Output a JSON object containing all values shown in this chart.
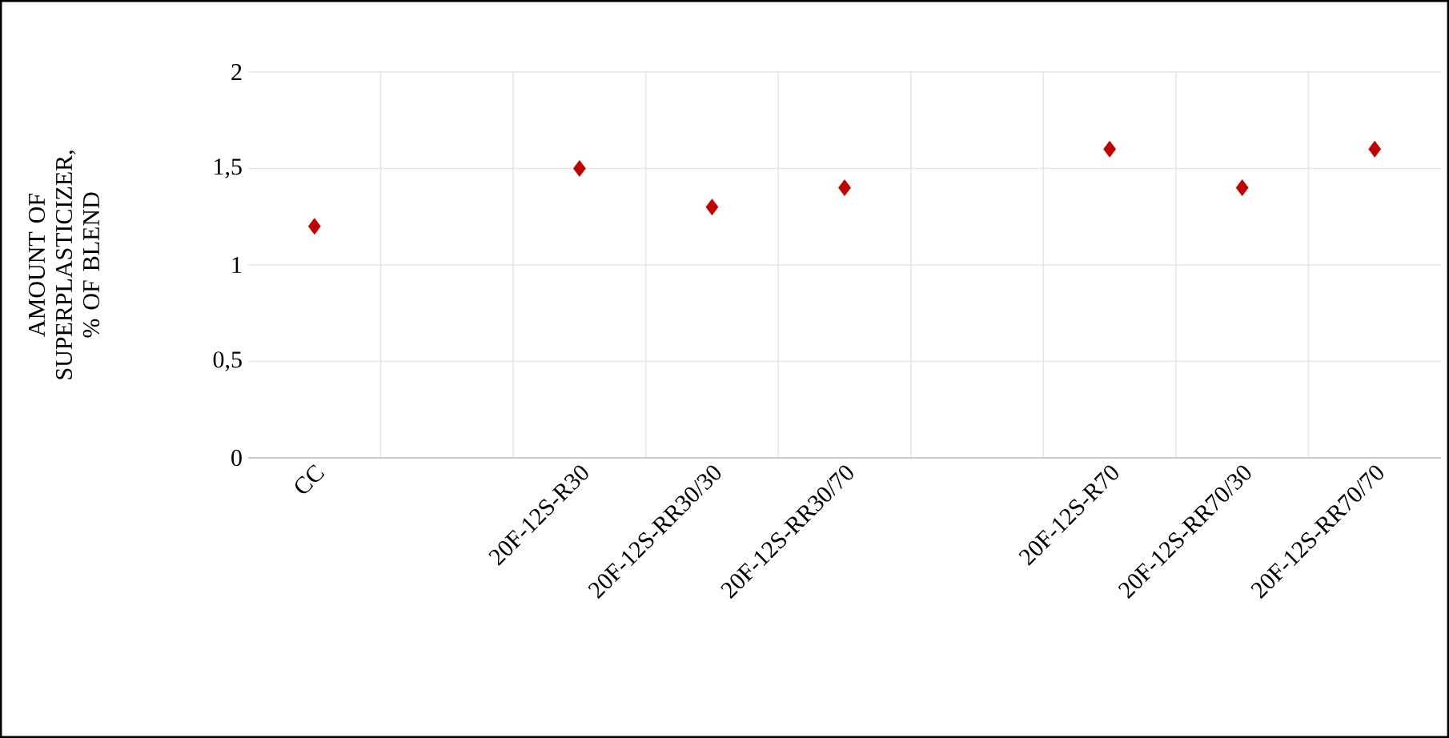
{
  "chart_data": {
    "type": "scatter",
    "ylabel": "AMOUNT OF SUPERPLASTICIZER, % OF BLEND",
    "categories": [
      "CC",
      null,
      "20F-12S-R30",
      "20F-12S-RR30/30",
      "20F-12S-RR30/70",
      null,
      "20F-12S-R70",
      "20F-12S-RR70/30",
      "20F-12S-RR70/70"
    ],
    "values": [
      1.2,
      null,
      1.5,
      1.3,
      1.4,
      null,
      1.6,
      1.4,
      1.6
    ],
    "color": "#c00000",
    "marker": "diamond",
    "grid": true,
    "ylim": [
      0,
      2
    ],
    "yticks": [
      0,
      {
        "value": 0.5,
        "label": "0,5"
      },
      1,
      {
        "value": 1.5,
        "label": "1,5"
      },
      2
    ]
  }
}
